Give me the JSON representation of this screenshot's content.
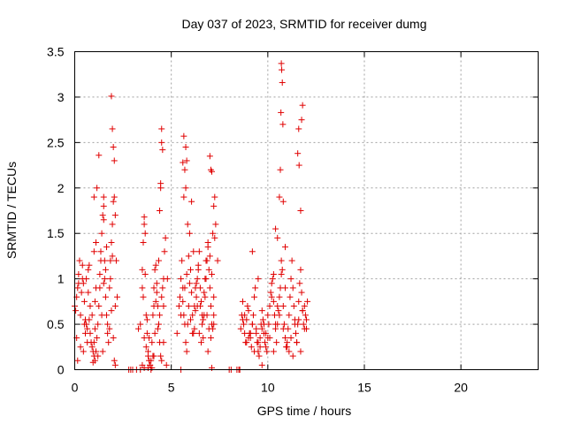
{
  "chart_data": {
    "type": "scatter",
    "title": "Day 037 of 2023, SRMTID for receiver dumg",
    "xlabel": "GPS time / hours",
    "ylabel": "SRMTID / TECUs",
    "xlim": [
      0,
      24
    ],
    "ylim": [
      0,
      3.5
    ],
    "xticks": [
      0,
      5,
      10,
      15,
      20
    ],
    "yticks": [
      0,
      0.5,
      1,
      1.5,
      2,
      2.5,
      3,
      3.5
    ],
    "xtick_labels": [
      "0",
      "5",
      "10",
      "15",
      "20"
    ],
    "ytick_labels": [
      "0",
      "0.5",
      "1",
      "1.5",
      "2",
      "2.5",
      "3",
      "3.5"
    ],
    "grid": true,
    "marker": "plus",
    "color": "#e00000",
    "series": [
      {
        "x": [
          0.0,
          0.05,
          0.1,
          0.15,
          0.2,
          0.25,
          0.3,
          0.35,
          0.4,
          0.45,
          0.5,
          0.55,
          0.6,
          0.65,
          0.7,
          0.75,
          0.8,
          0.85,
          0.9,
          0.95,
          1.0,
          1.05,
          1.1,
          1.15,
          1.2,
          1.25,
          1.3,
          1.35,
          1.4,
          1.45,
          1.5,
          1.55,
          1.6,
          1.65,
          1.7,
          1.75,
          1.8,
          1.85,
          1.9,
          1.95,
          2.0,
          2.05,
          2.1,
          2.15,
          2.2,
          0.1,
          0.3,
          0.5,
          0.7,
          0.9,
          1.1,
          1.3,
          1.5,
          1.7,
          1.9,
          2.1,
          0.2,
          0.4,
          0.6,
          0.8,
          1.0,
          1.2,
          1.4,
          1.6,
          1.8,
          2.0,
          0.15,
          0.45,
          0.75,
          1.05,
          1.35,
          1.65,
          1.95,
          1.25,
          1.15,
          1.9,
          1.95,
          2.0,
          2.05,
          1.0,
          1.5,
          1.55,
          1.85,
          2.1,
          2.05,
          1.45,
          1.0,
          1.1,
          1.05,
          0.95,
          1.5,
          0.55,
          0.65
        ],
        "y": [
          0.7,
          0.65,
          0.8,
          0.9,
          1.05,
          1.2,
          0.6,
          0.85,
          1.0,
          0.95,
          0.75,
          0.55,
          0.5,
          0.45,
          1.1,
          1.15,
          0.4,
          0.3,
          0.25,
          0.2,
          0.15,
          0.1,
          0.2,
          0.35,
          0.5,
          0.7,
          0.9,
          1.3,
          1.5,
          1.7,
          1.8,
          1.0,
          0.8,
          0.6,
          0.4,
          0.3,
          0.9,
          1.2,
          1.4,
          1.6,
          1.85,
          1.9,
          1.7,
          1.2,
          0.8,
          0.35,
          0.25,
          0.5,
          0.85,
          0.6,
          0.9,
          1.05,
          0.95,
          0.5,
          0.65,
          0.7,
          0.95,
          1.15,
          1.0,
          0.7,
          0.3,
          0.15,
          0.6,
          1.1,
          0.45,
          0.35,
          0.1,
          0.2,
          0.55,
          0.75,
          1.2,
          1.35,
          1.25,
          2.36,
          2.0,
          3.01,
          2.65,
          2.45,
          2.3,
          1.3,
          1.9,
          1.2,
          1.0,
          0.05,
          0.1,
          0.2,
          1.9,
          1.4,
          0.45,
          0.08,
          1.65,
          0.4,
          0.3
        ]
      },
      {
        "x": [
          3.4,
          3.5,
          3.55,
          3.6,
          3.65,
          3.7,
          3.75,
          3.8,
          3.85,
          3.9,
          3.95,
          4.0,
          4.05,
          4.1,
          4.15,
          4.2,
          4.25,
          4.3,
          4.35,
          4.4,
          4.45,
          4.5,
          4.55,
          4.6,
          4.65,
          4.7,
          4.75,
          4.8,
          3.5,
          3.6,
          3.7,
          3.8,
          3.9,
          4.0,
          4.1,
          4.2,
          4.3,
          4.4,
          4.5,
          4.6,
          3.55,
          3.65,
          3.75,
          3.85,
          3.95,
          4.05,
          4.15,
          4.25,
          4.35,
          4.45,
          4.5,
          4.55,
          4.5,
          4.45,
          4.4,
          4.6,
          3.6,
          3.5,
          3.0,
          2.8,
          2.9,
          3.3,
          3.2,
          3.4,
          3.8,
          3.6,
          4.1
        ],
        "y": [
          0.5,
          1.1,
          0.8,
          1.6,
          1.5,
          0.6,
          0.4,
          0.2,
          0.1,
          0.05,
          0.0,
          0.3,
          0.6,
          0.9,
          1.1,
          1.15,
          0.95,
          0.7,
          0.5,
          0.3,
          0.15,
          0.1,
          0.9,
          1.0,
          1.3,
          1.45,
          0.05,
          1.0,
          0.9,
          0.35,
          0.25,
          0.15,
          0.05,
          0.02,
          0.7,
          0.75,
          0.45,
          0.6,
          0.8,
          0.7,
          1.4,
          1.05,
          0.55,
          0.35,
          0.1,
          0.15,
          0.4,
          0.85,
          1.2,
          2.05,
          2.5,
          2.42,
          2.65,
          2.0,
          1.75,
          0.3,
          0.02,
          0.05,
          0.0,
          0.0,
          0.0,
          0.45,
          0.0,
          0.0,
          0.02,
          1.68,
          0.15
        ]
      },
      {
        "x": [
          5.3,
          5.4,
          5.45,
          5.5,
          5.55,
          5.6,
          5.65,
          5.7,
          5.75,
          5.8,
          5.85,
          5.9,
          5.95,
          6.0,
          6.05,
          6.1,
          6.15,
          6.2,
          6.25,
          6.3,
          6.35,
          6.4,
          6.45,
          6.5,
          6.55,
          6.6,
          6.65,
          6.7,
          6.75,
          6.8,
          6.85,
          6.9,
          6.95,
          7.0,
          7.05,
          7.1,
          7.15,
          7.2,
          7.25,
          7.3,
          5.5,
          5.6,
          5.7,
          5.8,
          5.9,
          6.0,
          6.1,
          6.2,
          6.3,
          6.4,
          6.5,
          6.6,
          6.7,
          6.8,
          6.9,
          7.0,
          7.1,
          7.2,
          5.65,
          5.75,
          5.85,
          5.95,
          6.05,
          6.15,
          6.25,
          6.35,
          6.45,
          6.55,
          6.65,
          6.75,
          6.85,
          6.95,
          7.05,
          7.15,
          5.6,
          5.65,
          5.7,
          5.75,
          5.8,
          7.0,
          7.05,
          7.1,
          7.2,
          5.5,
          7.1,
          8.0,
          8.1,
          8.4,
          8.5,
          8.55,
          7.2,
          7.4,
          6.9,
          7.25
        ],
        "y": [
          0.4,
          0.7,
          0.8,
          1.0,
          1.2,
          0.9,
          0.6,
          0.5,
          0.3,
          0.2,
          0.5,
          0.7,
          0.95,
          1.1,
          0.85,
          0.6,
          0.4,
          0.45,
          0.65,
          0.8,
          1.0,
          1.15,
          1.3,
          0.9,
          0.75,
          0.5,
          0.35,
          0.6,
          0.8,
          1.0,
          1.2,
          1.35,
          1.1,
          0.9,
          0.7,
          0.5,
          0.45,
          0.6,
          1.45,
          1.6,
          0.6,
          0.75,
          0.9,
          1.05,
          1.25,
          0.55,
          0.4,
          0.7,
          0.95,
          1.1,
          0.7,
          0.6,
          0.85,
          1.2,
          1.4,
          1.25,
          1.05,
          0.8,
          1.9,
          2.0,
          1.6,
          1.5,
          1.85,
          1.3,
          0.9,
          0.7,
          0.4,
          0.3,
          0.55,
          1.0,
          0.6,
          0.45,
          0.35,
          1.5,
          2.28,
          2.57,
          2.2,
          2.45,
          2.3,
          2.35,
          2.2,
          2.18,
          1.8,
          0.0,
          0.02,
          0.0,
          0.0,
          0.0,
          0.0,
          0.0,
          0.5,
          1.2,
          0.2,
          1.9
        ]
      },
      {
        "x": [
          8.6,
          8.65,
          8.7,
          8.75,
          8.8,
          8.85,
          8.9,
          8.95,
          9.0,
          9.05,
          9.1,
          9.15,
          9.2,
          9.25,
          9.3,
          9.35,
          9.4,
          9.45,
          9.5,
          9.55,
          9.6,
          9.65,
          9.7,
          9.75,
          9.8,
          9.85,
          9.9,
          9.95,
          10.0,
          10.05,
          10.1,
          10.15,
          10.2,
          10.25,
          10.3,
          10.35,
          10.4,
          10.45,
          10.5,
          10.55,
          10.6,
          10.65,
          10.7,
          10.75,
          10.8,
          10.85,
          10.9,
          10.95,
          11.0,
          11.05,
          11.1,
          11.15,
          11.2,
          11.25,
          11.3,
          11.35,
          11.4,
          11.45,
          11.5,
          11.55,
          11.6,
          11.65,
          11.7,
          11.75,
          11.8,
          11.85,
          11.9,
          11.95,
          12.0,
          12.05,
          8.8,
          9.0,
          9.2,
          9.4,
          9.6,
          9.8,
          10.0,
          10.2,
          10.4,
          10.6,
          10.8,
          11.0,
          11.2,
          11.4,
          11.6,
          11.8,
          12.0,
          8.7,
          8.9,
          9.1,
          9.3,
          9.5,
          9.7,
          9.9,
          10.1,
          10.3,
          10.5,
          10.7,
          10.9,
          11.1,
          11.3,
          11.5,
          11.7,
          11.9,
          10.7,
          10.72,
          10.75,
          10.68,
          10.78,
          10.65,
          10.6,
          11.8,
          11.75,
          11.6,
          11.55,
          11.62,
          11.7,
          10.3,
          10.4,
          10.5,
          10.8,
          10.9,
          9.2,
          9.5,
          9.7
        ],
        "y": [
          0.45,
          0.6,
          0.75,
          0.5,
          0.4,
          0.3,
          0.55,
          0.7,
          0.65,
          0.4,
          0.35,
          0.25,
          0.5,
          0.6,
          0.8,
          0.9,
          0.45,
          0.3,
          0.2,
          0.15,
          0.35,
          0.5,
          0.65,
          0.55,
          0.4,
          0.3,
          0.25,
          0.2,
          0.35,
          0.5,
          0.7,
          0.85,
          0.95,
          1.0,
          0.75,
          0.6,
          0.45,
          0.3,
          0.5,
          0.65,
          0.8,
          0.9,
          1.05,
          1.1,
          0.7,
          0.5,
          0.35,
          0.25,
          0.3,
          0.45,
          0.6,
          0.8,
          1.0,
          1.2,
          0.9,
          0.7,
          0.55,
          0.4,
          0.3,
          0.5,
          0.75,
          0.95,
          1.1,
          0.85,
          0.65,
          0.5,
          0.7,
          0.6,
          0.55,
          0.75,
          0.6,
          0.35,
          0.5,
          0.4,
          0.25,
          0.5,
          0.6,
          0.8,
          0.5,
          0.6,
          0.45,
          0.25,
          0.35,
          0.5,
          0.55,
          0.65,
          0.45,
          0.55,
          0.3,
          0.4,
          0.2,
          0.3,
          0.45,
          0.4,
          0.35,
          0.2,
          0.7,
          1.2,
          0.9,
          0.2,
          0.15,
          0.3,
          0.2,
          0.45,
          3.37,
          3.3,
          3.16,
          2.83,
          2.7,
          2.2,
          1.9,
          2.91,
          2.75,
          2.65,
          2.38,
          2.25,
          1.75,
          1.05,
          1.55,
          1.45,
          1.85,
          1.35,
          1.3,
          1.0,
          0.05
        ]
      }
    ]
  }
}
